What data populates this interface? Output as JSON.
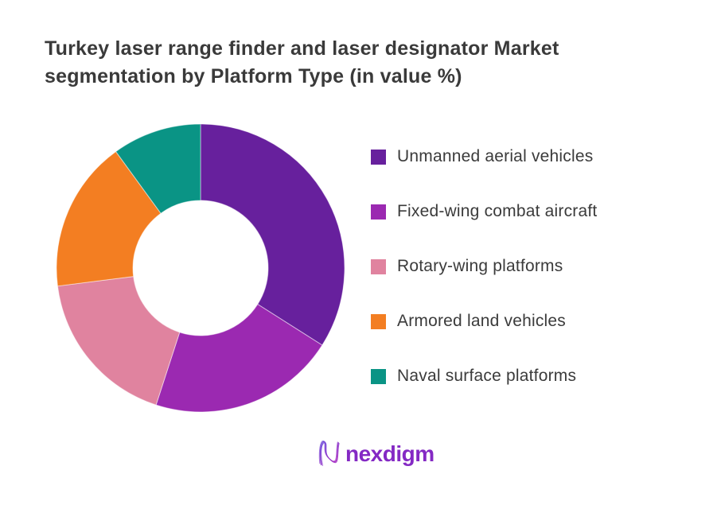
{
  "title": {
    "line1": "Turkey laser range finder and laser designator Market",
    "line2": "segmentation by Platform Type (in value %)"
  },
  "chart_data": {
    "type": "pie",
    "subtype": "donut",
    "title": "Turkey laser range finder and laser designator Market segmentation by Platform Type (in value %)",
    "unit": "percent of market value",
    "categories": [
      "Unmanned aerial vehicles",
      "Fixed-wing combat aircraft",
      "Rotary-wing platforms",
      "Armored land vehicles",
      "Naval surface platforms"
    ],
    "values": [
      34,
      21,
      18,
      17,
      10
    ],
    "colors": [
      "#67209D",
      "#9B29B1",
      "#E0839F",
      "#F37E22",
      "#0A9485"
    ],
    "start_angle_deg": 0,
    "direction": "clockwise",
    "inner_radius_ratio": 0.47,
    "legend_position": "right",
    "data_labels": false
  },
  "logo": {
    "text": "nexdigm",
    "icon": "nexdigm-squiggle-n",
    "text_color": "#8429C4",
    "icon_gradient": [
      "#6B4ADA",
      "#B02BC0"
    ]
  }
}
